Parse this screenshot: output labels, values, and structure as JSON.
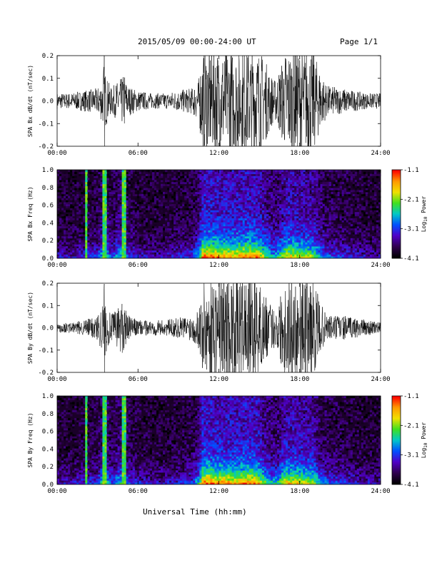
{
  "header": {
    "date_range": "2015/05/09  00:00-24:00 UT",
    "page": "Page 1/1"
  },
  "x_axis_title": "Universal Time (hh:mm)",
  "colorbar": {
    "label": "Log",
    "label_subscript": "10",
    "label_suffix": "Power",
    "ticks": [
      "-1.1",
      "-2.1",
      "-3.1",
      "-4.1"
    ],
    "colors": [
      "#ff0000",
      "#ff9900",
      "#f0e000",
      "#40e020",
      "#00c8c8",
      "#0050ff",
      "#5000c8",
      "#300050",
      "#000000"
    ]
  },
  "chart_data": [
    {
      "type": "line",
      "ylabel": "SPA Bx dB/dt (nT/sec)",
      "xlim": [
        0,
        24
      ],
      "ylim": [
        -0.2,
        0.2
      ],
      "xticks": [
        "00:00",
        "06:00",
        "12:00",
        "18:00",
        "24:00"
      ],
      "yticks": [
        "0.2",
        "0.1",
        "0.0",
        "-0.1",
        "-0.2"
      ],
      "series": [
        {
          "x": [
            0,
            1,
            2,
            3,
            3.4,
            3.5,
            3.6,
            4,
            4.8,
            5,
            5.2,
            6,
            7,
            8,
            9,
            10,
            10.5,
            10.8,
            11,
            12,
            13,
            14,
            14.8,
            15,
            15.5,
            16,
            16.2,
            17,
            17.5,
            18,
            19,
            19.5,
            20,
            21,
            22,
            23,
            24
          ],
          "envelope": [
            0.03,
            0.03,
            0.04,
            0.05,
            0.09,
            0.2,
            0.1,
            0.05,
            0.09,
            0.11,
            0.06,
            0.04,
            0.03,
            0.03,
            0.04,
            0.05,
            0.08,
            0.2,
            0.2,
            0.2,
            0.2,
            0.2,
            0.2,
            0.2,
            0.15,
            0.09,
            0.08,
            0.2,
            0.2,
            0.2,
            0.2,
            0.12,
            0.06,
            0.05,
            0.04,
            0.03,
            0.03
          ]
        }
      ]
    },
    {
      "type": "heatmap",
      "ylabel": "SPA Bx Freq (Hz)",
      "xlim": [
        0,
        24
      ],
      "ylim": [
        0,
        1
      ],
      "zlim": [
        -4.1,
        -1.1
      ],
      "xticks": [
        "00:00",
        "06:00",
        "12:00",
        "18:00",
        "24:00"
      ],
      "yticks": [
        "1.0",
        "0.8",
        "0.6",
        "0.4",
        "0.2",
        "0.0"
      ],
      "activity": {
        "x": [
          0,
          1,
          2,
          3,
          3.4,
          3.5,
          3.6,
          4,
          4.8,
          5,
          5.2,
          6,
          7,
          8,
          9,
          10,
          10.5,
          10.8,
          11,
          12,
          13,
          14,
          14.8,
          15,
          15.5,
          16,
          16.2,
          17,
          17.5,
          18,
          19,
          19.5,
          20,
          21,
          22,
          23,
          24
        ],
        "level": [
          0.25,
          0.25,
          0.3,
          0.35,
          0.6,
          0.95,
          0.6,
          0.35,
          0.6,
          0.75,
          0.4,
          0.3,
          0.25,
          0.25,
          0.3,
          0.35,
          0.55,
          0.95,
          1.0,
          0.95,
          0.9,
          0.95,
          0.95,
          0.9,
          0.7,
          0.55,
          0.5,
          0.85,
          0.85,
          0.8,
          0.75,
          0.55,
          0.4,
          0.35,
          0.3,
          0.25,
          0.25
        ]
      }
    },
    {
      "type": "line",
      "ylabel": "SPA By dB/dt (nT/sec)",
      "xlim": [
        0,
        24
      ],
      "ylim": [
        -0.2,
        0.2
      ],
      "xticks": [
        "00:00",
        "06:00",
        "12:00",
        "18:00",
        "24:00"
      ],
      "yticks": [
        "0.2",
        "0.1",
        "0.0",
        "-0.1",
        "-0.2"
      ],
      "series": [
        {
          "x": [
            0,
            1,
            2,
            3,
            3.4,
            3.5,
            3.6,
            4,
            4.8,
            5,
            5.2,
            6,
            7,
            8,
            9,
            10,
            10.5,
            10.8,
            11,
            12,
            13,
            14,
            14.8,
            15,
            15.5,
            16,
            16.2,
            17,
            17.5,
            18,
            19,
            19.5,
            20,
            21,
            22,
            23,
            24
          ],
          "envelope": [
            0.02,
            0.02,
            0.03,
            0.05,
            0.1,
            0.2,
            0.1,
            0.05,
            0.1,
            0.12,
            0.05,
            0.03,
            0.03,
            0.03,
            0.04,
            0.05,
            0.08,
            0.2,
            0.2,
            0.2,
            0.2,
            0.2,
            0.2,
            0.18,
            0.12,
            0.08,
            0.08,
            0.2,
            0.2,
            0.2,
            0.2,
            0.1,
            0.05,
            0.05,
            0.04,
            0.03,
            0.02
          ]
        }
      ]
    },
    {
      "type": "heatmap",
      "ylabel": "SPA By Freq (Hz)",
      "xlim": [
        0,
        24
      ],
      "ylim": [
        0,
        1
      ],
      "zlim": [
        -4.1,
        -1.1
      ],
      "xticks": [
        "00:00",
        "06:00",
        "12:00",
        "18:00",
        "24:00"
      ],
      "yticks": [
        "1.0",
        "0.8",
        "0.6",
        "0.4",
        "0.2",
        "0.0"
      ],
      "activity": {
        "x": [
          0,
          1,
          2,
          3,
          3.4,
          3.5,
          3.6,
          4,
          4.8,
          5,
          5.2,
          6,
          7,
          8,
          9,
          10,
          10.5,
          10.8,
          11,
          12,
          13,
          14,
          14.8,
          15,
          15.5,
          16,
          16.2,
          17,
          17.5,
          18,
          19,
          19.5,
          20,
          21,
          22,
          23,
          24
        ],
        "level": [
          0.25,
          0.25,
          0.3,
          0.35,
          0.6,
          0.95,
          0.6,
          0.35,
          0.6,
          0.75,
          0.4,
          0.3,
          0.25,
          0.25,
          0.3,
          0.35,
          0.55,
          0.95,
          1.0,
          0.95,
          0.9,
          0.95,
          0.95,
          0.85,
          0.65,
          0.55,
          0.5,
          0.85,
          0.85,
          0.8,
          0.75,
          0.5,
          0.4,
          0.35,
          0.3,
          0.25,
          0.25
        ]
      }
    }
  ]
}
